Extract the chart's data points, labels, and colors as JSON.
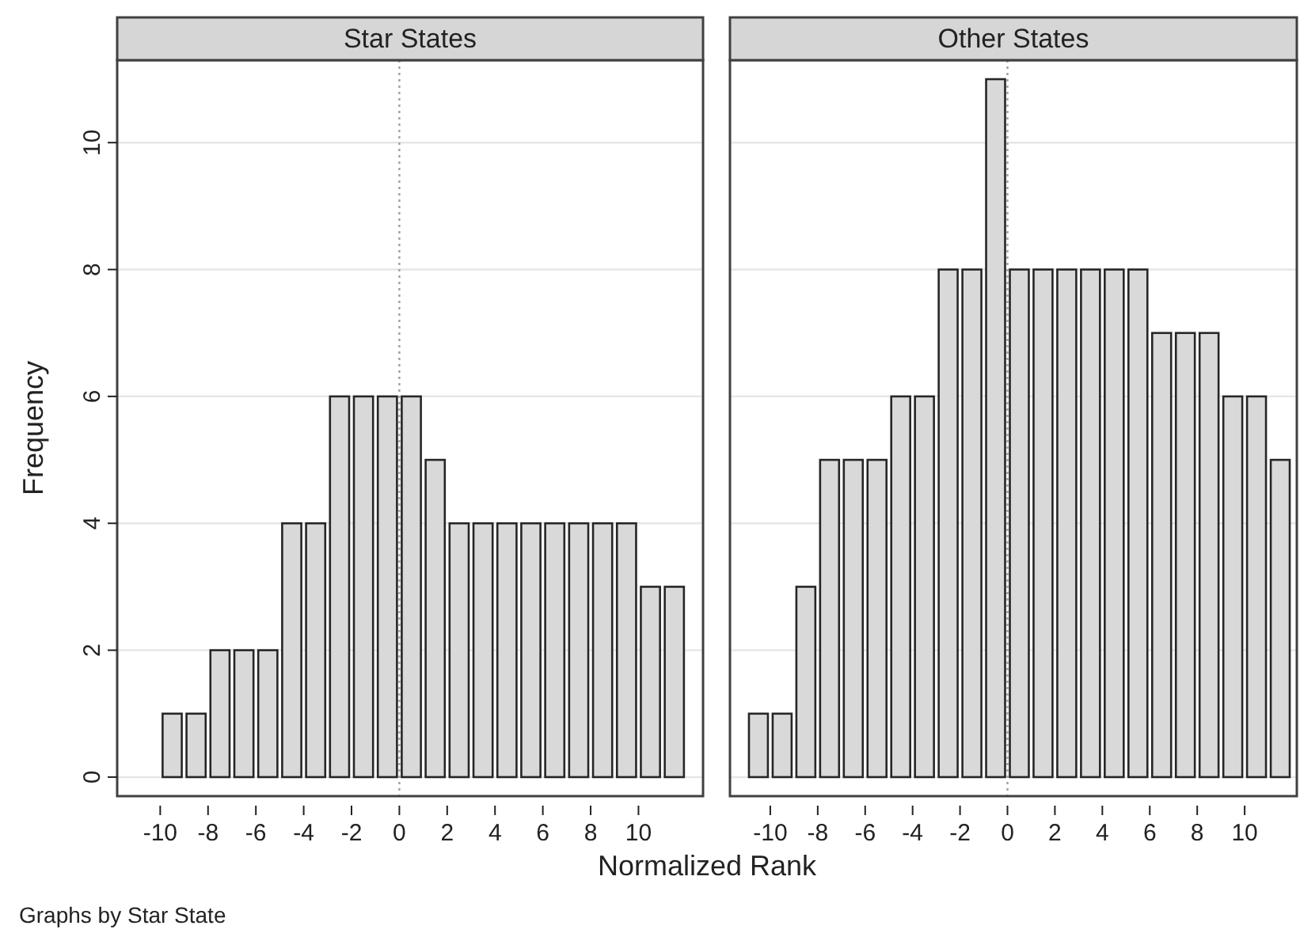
{
  "chart_data": [
    {
      "type": "histogram",
      "title": "Star States",
      "xlabel": "Normalized Rank",
      "ylabel": "Frequency",
      "annotations": [
        "Graphs by Star State"
      ],
      "bins": [
        -10,
        -9,
        -8,
        -7,
        -6,
        -5,
        -4,
        -3,
        -2,
        -1,
        0,
        1,
        2,
        3,
        4,
        5,
        6,
        7,
        8,
        9,
        10,
        11,
        12
      ],
      "values": [
        1,
        1,
        2,
        2,
        2,
        4,
        4,
        6,
        6,
        6,
        6,
        5,
        4,
        4,
        4,
        4,
        4,
        4,
        4,
        4,
        3,
        3
      ],
      "color": "#d9d9d9",
      "xlim": [
        -11.8,
        12.7
      ],
      "xticks": [
        -10,
        -8,
        -6,
        -4,
        -2,
        0,
        2,
        4,
        6,
        8,
        10
      ],
      "ylim": [
        -0.3,
        11.3
      ],
      "yticks": [
        0,
        2,
        4,
        6,
        8,
        10
      ],
      "grid": "y",
      "ref_lines": [
        {
          "axis": "x",
          "value": 0,
          "color": "#a0a0a0",
          "line_style": "dotted"
        }
      ]
    },
    {
      "type": "histogram",
      "title": "Other States",
      "bins": [
        -11,
        -10,
        -9,
        -8,
        -7,
        -6,
        -5,
        -4,
        -3,
        -2,
        -1,
        0,
        1,
        2,
        3,
        4,
        5,
        6,
        7,
        8,
        9,
        10,
        11,
        12
      ],
      "values": [
        1,
        1,
        3,
        5,
        5,
        5,
        6,
        6,
        8,
        8,
        11,
        8,
        8,
        8,
        8,
        8,
        8,
        7,
        7,
        7,
        6,
        6,
        5
      ],
      "color": "#d9d9d9",
      "xlim": [
        -11.7,
        12.2
      ],
      "xticks": [
        -10,
        -8,
        -6,
        -4,
        -2,
        0,
        2,
        4,
        6,
        8,
        10
      ],
      "ylim": [
        -0.3,
        11.3
      ],
      "yticks": [
        0,
        2,
        4,
        6,
        8,
        10
      ],
      "grid": "y",
      "tick_labels": "x",
      "ref_lines": [
        {
          "axis": "x",
          "value": 0,
          "color": "#a0a0a0",
          "line_style": "dotted"
        }
      ]
    }
  ]
}
